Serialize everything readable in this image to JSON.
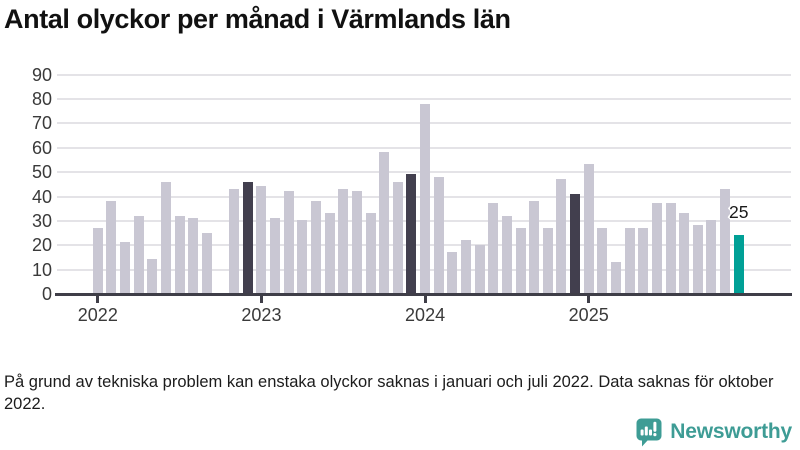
{
  "title": "Antal olyckor per månad i Värmlands län",
  "footnote": "På grund av tekniska problem kan enstaka olyckor saknas i januari och juli 2022. Data saknas för oktober 2022.",
  "branding": {
    "name": "Newsworthy",
    "icon": "newsworthy-speech-bubble-bar-chart-icon",
    "color": "#3E9C95"
  },
  "chart_data": {
    "type": "bar",
    "title": "Antal olyckor per månad i Värmlands län",
    "xlabel": "",
    "ylabel": "",
    "x": [
      "2022-01",
      "2022-02",
      "2022-03",
      "2022-04",
      "2022-05",
      "2022-06",
      "2022-07",
      "2022-08",
      "2022-09",
      "2022-10",
      "2022-11",
      "2022-12",
      "2023-01",
      "2023-02",
      "2023-03",
      "2023-04",
      "2023-05",
      "2023-06",
      "2023-07",
      "2023-08",
      "2023-09",
      "2023-10",
      "2023-11",
      "2023-12",
      "2024-01",
      "2024-02",
      "2024-03",
      "2024-04",
      "2024-05",
      "2024-06",
      "2024-07",
      "2024-08",
      "2024-09",
      "2024-10",
      "2024-11",
      "2024-12",
      "2025-01",
      "2025-02",
      "2025-03",
      "2025-04",
      "2025-05",
      "2025-06",
      "2025-07",
      "2025-08",
      "2025-09",
      "2025-10",
      "2025-11",
      "2025-12"
    ],
    "values": [
      28,
      39,
      22,
      33,
      15,
      47,
      33,
      32,
      26,
      null,
      44,
      47,
      45,
      32,
      43,
      31,
      39,
      34,
      44,
      43,
      34,
      59,
      47,
      50,
      79,
      49,
      18,
      23,
      21,
      38,
      33,
      28,
      39,
      28,
      48,
      42,
      54,
      28,
      14,
      28,
      28,
      38,
      38,
      34,
      29,
      31,
      44,
      25
    ],
    "missing_months": [
      "2022-10"
    ],
    "highlight_dark": [
      "2022-12",
      "2023-12",
      "2024-12"
    ],
    "highlight_latest": "2025-12",
    "annotations": [
      {
        "x": "2025-12",
        "text": "25"
      }
    ],
    "ylim": [
      0,
      90
    ],
    "yticks": [
      0,
      10,
      20,
      30,
      40,
      50,
      60,
      70,
      80,
      90
    ],
    "xticks": [
      "2022",
      "2023",
      "2024",
      "2025"
    ],
    "grid": "horizontal",
    "legend": "none",
    "colors": {
      "bar": "#C9C7D3",
      "dark": "#423F4E",
      "teal": "#00A096",
      "grid": "#E4E3E7",
      "axis": "#3F3E48",
      "logo": "#3E9C95"
    }
  }
}
